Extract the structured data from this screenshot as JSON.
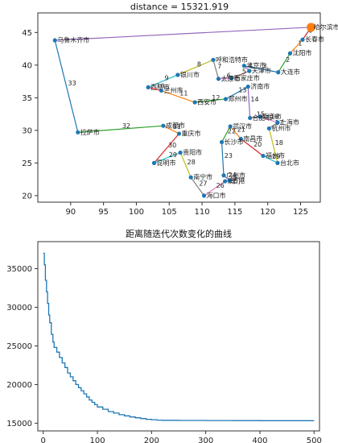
{
  "chart_data": [
    {
      "type": "line",
      "title": "distance = 15321.919",
      "xlabel": "",
      "ylabel": "",
      "xlim": [
        85,
        128
      ],
      "ylim": [
        19,
        48
      ],
      "xticks": [
        90,
        95,
        100,
        105,
        110,
        115,
        120,
        125
      ],
      "yticks": [
        20,
        25,
        30,
        35,
        40,
        45
      ],
      "highlight_city": "哈尔滨市",
      "points": [
        {
          "name": "哈尔滨市",
          "x": 126.6,
          "y": 45.8
        },
        {
          "name": "长春市",
          "x": 125.3,
          "y": 43.9
        },
        {
          "name": "沈阳市",
          "x": 123.4,
          "y": 41.8
        },
        {
          "name": "大连市",
          "x": 121.6,
          "y": 38.9
        },
        {
          "name": "北京市",
          "x": 116.4,
          "y": 39.9
        },
        {
          "name": "天津市",
          "x": 117.2,
          "y": 39.1
        },
        {
          "name": "石家庄市",
          "x": 114.5,
          "y": 38.0
        },
        {
          "name": "太原市",
          "x": 112.5,
          "y": 37.9
        },
        {
          "name": "呼和浩特市",
          "x": 111.7,
          "y": 40.8
        },
        {
          "name": "银川市",
          "x": 106.3,
          "y": 38.5
        },
        {
          "name": "西宁市",
          "x": 101.8,
          "y": 36.6
        },
        {
          "name": "兰州市",
          "x": 103.8,
          "y": 36.1
        },
        {
          "name": "西安市",
          "x": 108.9,
          "y": 34.3
        },
        {
          "name": "郑州市",
          "x": 113.6,
          "y": 34.8
        },
        {
          "name": "济南市",
          "x": 117.0,
          "y": 36.7
        },
        {
          "name": "合肥市",
          "x": 117.3,
          "y": 31.9
        },
        {
          "name": "南京市",
          "x": 118.8,
          "y": 32.1
        },
        {
          "name": "上海市",
          "x": 121.5,
          "y": 31.2
        },
        {
          "name": "杭州市",
          "x": 120.2,
          "y": 30.3
        },
        {
          "name": "台北市",
          "x": 121.5,
          "y": 25.0
        },
        {
          "name": "福州市",
          "x": 119.3,
          "y": 26.1
        },
        {
          "name": "南昌市",
          "x": 115.9,
          "y": 28.7
        },
        {
          "name": "武汉市",
          "x": 114.3,
          "y": 30.6
        },
        {
          "name": "长沙市",
          "x": 113.0,
          "y": 28.2
        },
        {
          "name": "广州市",
          "x": 113.3,
          "y": 23.1
        },
        {
          "name": "香港",
          "x": 114.2,
          "y": 22.3
        },
        {
          "name": "澳门",
          "x": 113.5,
          "y": 22.2
        },
        {
          "name": "海口市",
          "x": 110.3,
          "y": 20.0
        },
        {
          "name": "南宁市",
          "x": 108.3,
          "y": 22.8
        },
        {
          "name": "贵阳市",
          "x": 106.7,
          "y": 26.6
        },
        {
          "name": "昆明市",
          "x": 102.7,
          "y": 25.0
        },
        {
          "name": "重庆市",
          "x": 106.5,
          "y": 29.5
        },
        {
          "name": "成都市",
          "x": 104.1,
          "y": 30.7
        },
        {
          "name": "拉萨市",
          "x": 91.1,
          "y": 29.7
        },
        {
          "name": "乌鲁木齐市",
          "x": 87.6,
          "y": 43.8
        }
      ],
      "edge_labels": [
        "0",
        "1",
        "2",
        "3",
        "4",
        "5",
        "6",
        "7",
        "8",
        "9",
        "10",
        "11",
        "12",
        "13",
        "14",
        "15",
        "16",
        "17",
        "18",
        "19",
        "20",
        "21",
        "22",
        "23",
        "24",
        "25",
        "26",
        "27",
        "28",
        "29",
        "30",
        "31",
        "32",
        "33"
      ]
    },
    {
      "type": "line",
      "title": "距离随迭代次数变化的曲线",
      "xlabel": "",
      "ylabel": "",
      "xlim": [
        -10,
        510
      ],
      "ylim": [
        14000,
        38500
      ],
      "xticks": [
        0,
        100,
        200,
        300,
        400,
        500
      ],
      "yticks": [
        15000,
        20000,
        25000,
        30000,
        35000
      ],
      "x": [
        0,
        2,
        4,
        6,
        8,
        10,
        12,
        15,
        18,
        20,
        25,
        30,
        35,
        40,
        45,
        50,
        55,
        60,
        65,
        70,
        75,
        80,
        85,
        90,
        95,
        100,
        110,
        120,
        130,
        140,
        150,
        160,
        170,
        180,
        190,
        200,
        210,
        220,
        250,
        300,
        350,
        400,
        450,
        500
      ],
      "y": [
        37000,
        35500,
        33500,
        32000,
        30500,
        29000,
        28000,
        26500,
        25500,
        24800,
        24200,
        23500,
        22800,
        22200,
        21500,
        21000,
        20500,
        20000,
        19600,
        19200,
        18800,
        18400,
        18000,
        17700,
        17400,
        17100,
        16800,
        16500,
        16300,
        16100,
        15950,
        15800,
        15700,
        15600,
        15500,
        15450,
        15400,
        15380,
        15360,
        15340,
        15330,
        15325,
        15322,
        15322
      ]
    }
  ]
}
